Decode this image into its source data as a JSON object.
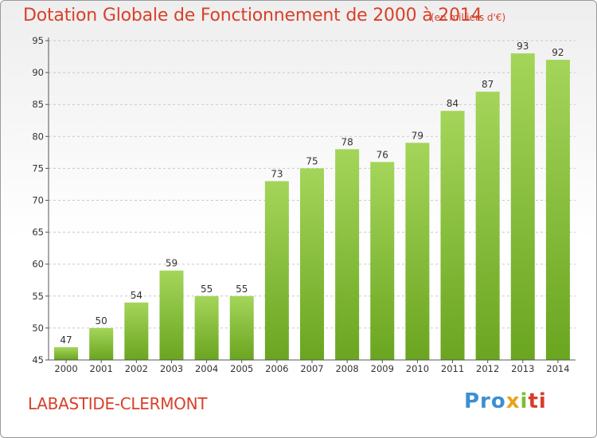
{
  "header": {
    "title": "Dotation Globale de Fonctionnement de 2000 à 2014",
    "unit": "(en milliers d'€)"
  },
  "footer": {
    "commune": "LABASTIDE-CLERMONT",
    "brand": [
      "Pro",
      "x",
      "i",
      "ti"
    ]
  },
  "colors": {
    "bar_top": "#a4d55a",
    "bar_bottom": "#6aa520",
    "title": "#d9402a",
    "grid": "#c8c8c8"
  },
  "chart_data": {
    "type": "bar",
    "title": "Dotation Globale de Fonctionnement de 2000 à 2014",
    "categories": [
      "2000",
      "2001",
      "2002",
      "2003",
      "2004",
      "2005",
      "2006",
      "2007",
      "2008",
      "2009",
      "2010",
      "2011",
      "2012",
      "2013",
      "2014"
    ],
    "values": [
      47,
      50,
      54,
      59,
      55,
      55,
      73,
      75,
      78,
      76,
      79,
      84,
      87,
      93,
      92
    ],
    "ylim": [
      45,
      95
    ],
    "yticks": [
      45,
      50,
      55,
      60,
      65,
      70,
      75,
      80,
      85,
      90,
      95
    ],
    "grid": "horizontal dashed",
    "xlabel": "",
    "ylabel": ""
  }
}
